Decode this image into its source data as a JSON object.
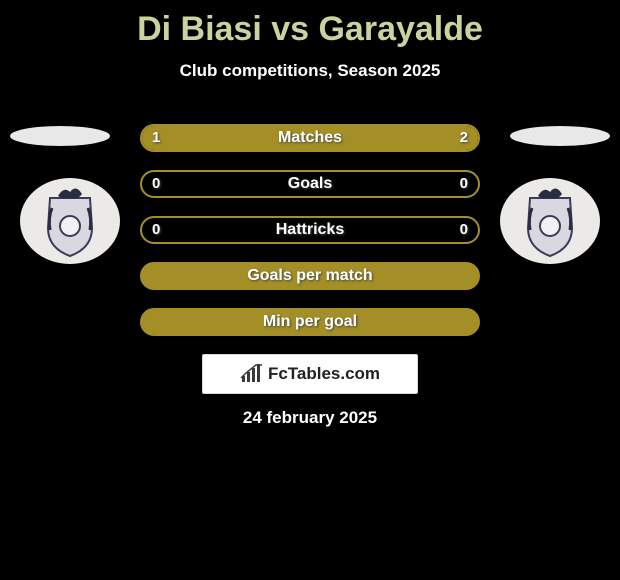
{
  "title": "Di Biasi vs Garayalde",
  "title_color": "#c9d39e",
  "subtitle": "Club competitions, Season 2025",
  "date": "24 february 2025",
  "brand": "FcTables.com",
  "background_color": "#000000",
  "bar_border_color": "#a38f25",
  "fill_color": "#a38f25",
  "text_color": "#ffffff",
  "avatar_bg": "#e8e8e8",
  "crest": {
    "ellipse_fill": "#eceae6",
    "shield_fill": "#d9d8e0",
    "shield_stroke": "#3c3c58",
    "accent": "#2b2b46"
  },
  "brand_box": {
    "bg": "#ffffff",
    "border": "#d8d8d8",
    "text_color": "#222222",
    "icon_color": "#3a3a3a"
  },
  "bars": [
    {
      "label": "Matches",
      "left_val": "1",
      "right_val": "2",
      "left_pct": 33.3,
      "right_pct": 66.7,
      "show_vals": true,
      "full_fill": false
    },
    {
      "label": "Goals",
      "left_val": "0",
      "right_val": "0",
      "left_pct": 0,
      "right_pct": 0,
      "show_vals": true,
      "full_fill": false
    },
    {
      "label": "Hattricks",
      "left_val": "0",
      "right_val": "0",
      "left_pct": 0,
      "right_pct": 0,
      "show_vals": true,
      "full_fill": false
    },
    {
      "label": "Goals per match",
      "left_val": "",
      "right_val": "",
      "left_pct": 0,
      "right_pct": 0,
      "show_vals": false,
      "full_fill": true
    },
    {
      "label": "Min per goal",
      "left_val": "",
      "right_val": "",
      "left_pct": 0,
      "right_pct": 0,
      "show_vals": false,
      "full_fill": true
    }
  ]
}
